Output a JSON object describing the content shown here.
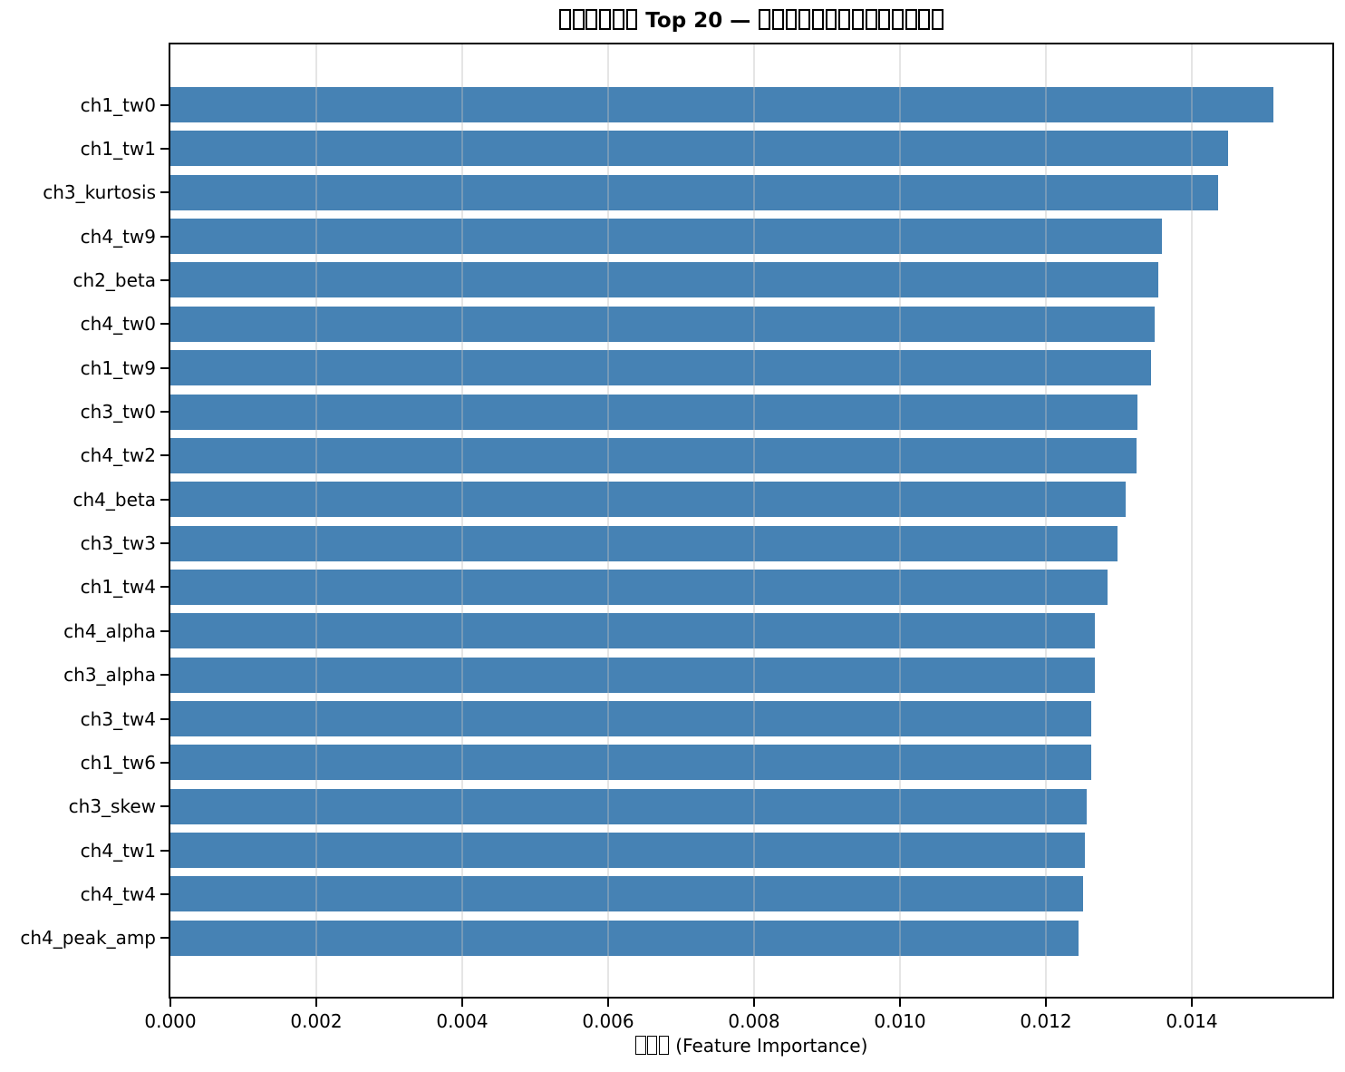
{
  "chart_data": {
    "type": "bar",
    "orientation": "horizontal",
    "title": "□□□□□□ Top 20 — □□□□□□□□□□□□□□",
    "xlabel": "□□□ (Feature Importance)",
    "categories": [
      "ch1_tw0",
      "ch1_tw1",
      "ch3_kurtosis",
      "ch4_tw9",
      "ch2_beta",
      "ch4_tw0",
      "ch1_tw9",
      "ch3_tw0",
      "ch4_tw2",
      "ch4_beta",
      "ch3_tw3",
      "ch1_tw4",
      "ch4_alpha",
      "ch3_alpha",
      "ch3_tw4",
      "ch1_tw6",
      "ch3_skew",
      "ch4_tw1",
      "ch4_tw4",
      "ch4_peak_amp"
    ],
    "values": [
      0.01512,
      0.0145,
      0.01437,
      0.01359,
      0.01355,
      0.01349,
      0.01344,
      0.01326,
      0.01324,
      0.0131,
      0.01299,
      0.01285,
      0.01268,
      0.01268,
      0.01262,
      0.01262,
      0.01256,
      0.01254,
      0.01251,
      0.01245
    ],
    "xticks": [
      0,
      0.002,
      0.004,
      0.006,
      0.008,
      0.01,
      0.012,
      0.014
    ],
    "xtick_labels": [
      "0.000",
      "0.002",
      "0.004",
      "0.006",
      "0.008",
      "0.010",
      "0.012",
      "0.014"
    ],
    "xlim": [
      0,
      0.01593
    ],
    "bar_color": "#4682b4",
    "grid": true,
    "legend": "none",
    "note_missing_glyphs": "title and xlabel CJK characters render as hollow tofu boxes (□)"
  }
}
